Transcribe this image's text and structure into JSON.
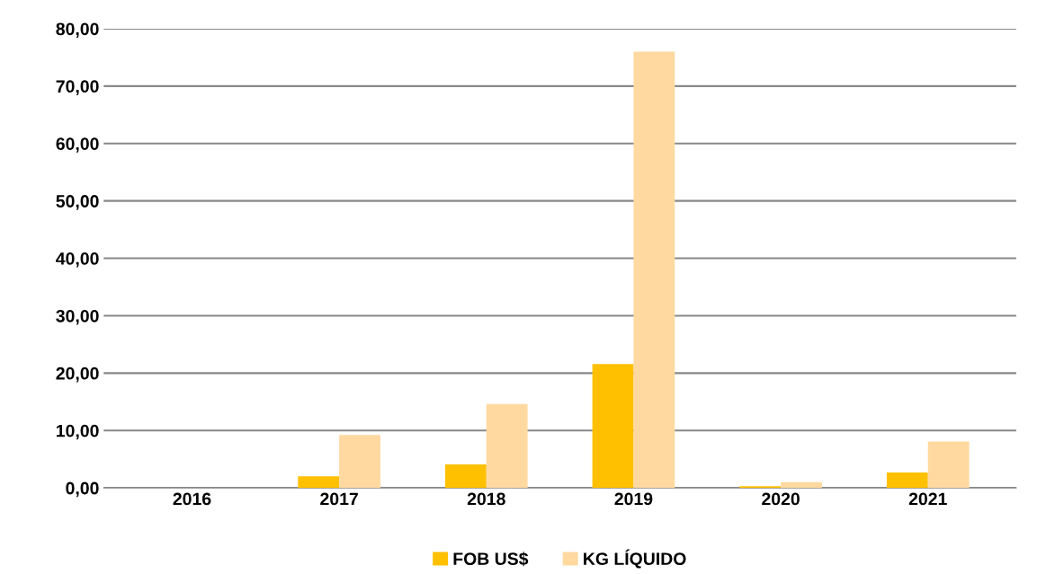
{
  "chart_data": {
    "type": "bar",
    "categories": [
      "2016",
      "2017",
      "2018",
      "2019",
      "2020",
      "2021"
    ],
    "series": [
      {
        "name": "FOB US$",
        "color": "#ffc000",
        "values": [
          0,
          2.0,
          4.1,
          21.6,
          0.3,
          2.7
        ]
      },
      {
        "name": "KG LÍQUIDO",
        "color": "#ffd9a0",
        "values": [
          0,
          9.2,
          14.6,
          76.0,
          1.0,
          8.1
        ]
      }
    ],
    "ylim": [
      0,
      80
    ],
    "yticks": [
      {
        "value": 0,
        "label": "0,00"
      },
      {
        "value": 10,
        "label": "10,00"
      },
      {
        "value": 20,
        "label": "20,00"
      },
      {
        "value": 30,
        "label": "30,00"
      },
      {
        "value": 40,
        "label": "40,00"
      },
      {
        "value": 50,
        "label": "50,00"
      },
      {
        "value": 60,
        "label": "60,00"
      },
      {
        "value": 70,
        "label": "70,00"
      },
      {
        "value": 80,
        "label": "80,00"
      }
    ],
    "grid": "y",
    "legend": "bottom"
  }
}
